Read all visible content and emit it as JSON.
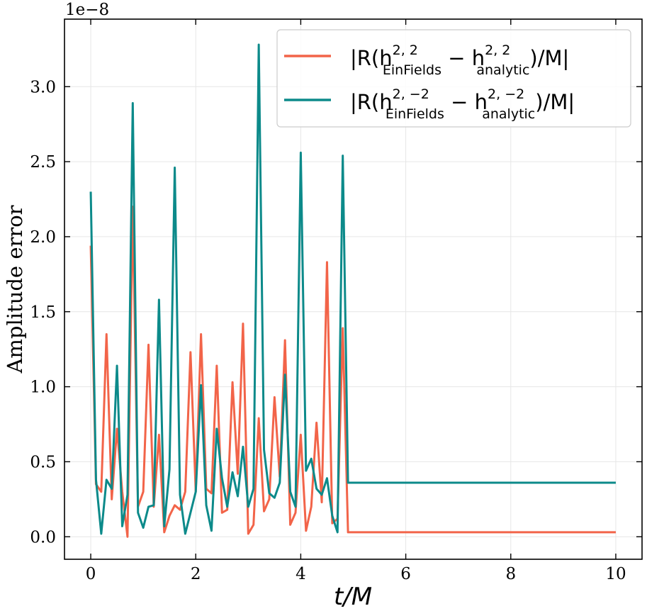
{
  "chart_data": {
    "type": "line",
    "title": "",
    "xlabel": "t/M",
    "ylabel": "Amplitude error",
    "y_offset_label": "1e−8",
    "xlim": [
      -0.5,
      10.5
    ],
    "ylim": [
      -0.15,
      3.45
    ],
    "xticks": [
      0,
      2,
      4,
      6,
      8,
      10
    ],
    "xtick_labels": [
      "0",
      "2",
      "4",
      "6",
      "8",
      "10"
    ],
    "yticks": [
      0.0,
      0.5,
      1.0,
      1.5,
      2.0,
      2.5,
      3.0
    ],
    "ytick_labels": [
      "0.0",
      "0.5",
      "1.0",
      "1.5",
      "2.0",
      "2.5",
      "3.0"
    ],
    "grid": true,
    "legend_position": "top-right",
    "x": [
      0.0,
      0.1,
      0.2,
      0.3,
      0.4,
      0.5,
      0.6,
      0.7,
      0.8,
      0.9,
      1.0,
      1.1,
      1.2,
      1.3,
      1.4,
      1.5,
      1.6,
      1.7,
      1.8,
      1.9,
      2.0,
      2.1,
      2.2,
      2.3,
      2.4,
      2.5,
      2.6,
      2.7,
      2.8,
      2.9,
      3.0,
      3.1,
      3.2,
      3.3,
      3.4,
      3.5,
      3.6,
      3.7,
      3.8,
      3.9,
      4.0,
      4.1,
      4.2,
      4.3,
      4.4,
      4.5,
      4.6,
      4.7,
      4.8,
      4.9,
      5.0,
      10.0
    ],
    "series": [
      {
        "name": "|R(h^{2,2}_{EinFields} − h^{2,2}_{analytic})/M|",
        "legend_base": "|R(h",
        "legend_sup": "2, 2",
        "legend_sub_a": "EinFields",
        "legend_mid": " − h",
        "legend_sub_b": "analytic",
        "legend_end": ")/M|",
        "color": "#f26449",
        "values": [
          1.94,
          0.35,
          0.3,
          1.35,
          0.25,
          0.72,
          0.3,
          0.0,
          2.2,
          0.2,
          0.3,
          1.28,
          0.2,
          0.68,
          0.03,
          0.14,
          0.21,
          0.18,
          0.3,
          1.23,
          0.3,
          1.35,
          0.32,
          0.29,
          1.14,
          0.16,
          0.18,
          1.03,
          0.42,
          1.42,
          0.02,
          0.08,
          0.79,
          0.17,
          0.25,
          0.93,
          0.4,
          1.31,
          0.08,
          0.16,
          0.68,
          0.04,
          0.2,
          0.76,
          0.23,
          1.83,
          0.09,
          0.12,
          1.39,
          0.03,
          0.03,
          0.03
        ]
      },
      {
        "name": "|R(h^{2,−2}_{EinFields} − h^{2,−2}_{analytic})/M|",
        "legend_base": "|R(h",
        "legend_sup": "2, −2",
        "legend_sub_a": "EinFields",
        "legend_mid": " − h",
        "legend_sub_b": "analytic",
        "legend_end": ")/M|",
        "color": "#0c8a8a",
        "values": [
          2.3,
          0.38,
          0.02,
          0.38,
          0.32,
          1.14,
          0.07,
          0.28,
          2.89,
          0.16,
          0.06,
          0.2,
          0.21,
          1.58,
          0.07,
          0.45,
          2.46,
          0.28,
          0.02,
          0.16,
          0.3,
          1.01,
          0.21,
          0.04,
          0.72,
          0.39,
          0.2,
          0.43,
          0.27,
          0.6,
          0.2,
          0.32,
          3.28,
          0.58,
          0.29,
          0.26,
          0.36,
          1.08,
          0.3,
          0.2,
          2.56,
          0.44,
          0.52,
          0.32,
          0.28,
          0.39,
          0.14,
          0.03,
          2.54,
          0.36,
          0.36,
          0.36
        ]
      }
    ]
  }
}
